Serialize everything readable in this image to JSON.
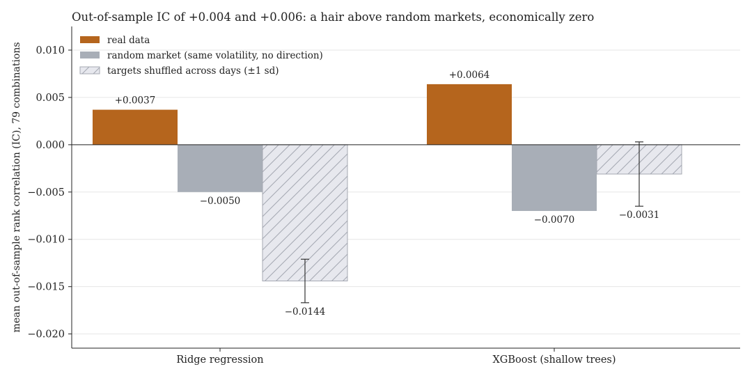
{
  "chart_data": {
    "type": "bar",
    "title": "Out-of-sample IC of +0.004 and +0.006: a hair above random markets, economically zero",
    "xlabel": "",
    "ylabel": "mean out-of-sample rank correlation (IC), 79 combinations",
    "ylim": [
      -0.0215,
      0.0125
    ],
    "yticks": [
      0.01,
      0.005,
      0.0,
      -0.005,
      -0.01,
      -0.015,
      -0.02
    ],
    "ytick_labels": [
      "0.010",
      "0.005",
      "0.000",
      "−0.005",
      "−0.010",
      "−0.015",
      "−0.020"
    ],
    "grid": "horizontal",
    "legend_position": "top-left",
    "categories": [
      "Ridge regression",
      "XGBoost (shallow trees)"
    ],
    "series": [
      {
        "name": "real data",
        "color": "#b5651d",
        "pattern": "solid",
        "values": [
          0.0037,
          0.0064
        ],
        "labels": [
          "+0.0037",
          "+0.0064"
        ]
      },
      {
        "name": "random market (same volatility, no direction)",
        "color": "#a8aeb7",
        "pattern": "solid",
        "values": [
          -0.005,
          -0.007
        ],
        "labels": [
          "−0.0050",
          "−0.0070"
        ]
      },
      {
        "name": "targets shuffled across days (±1 sd)",
        "color": "#e7e8ee",
        "pattern": "hatched",
        "values": [
          -0.0144,
          -0.0031
        ],
        "errors": [
          0.0023,
          0.0034
        ],
        "labels": [
          "−0.0144",
          "−0.0031"
        ]
      }
    ]
  }
}
